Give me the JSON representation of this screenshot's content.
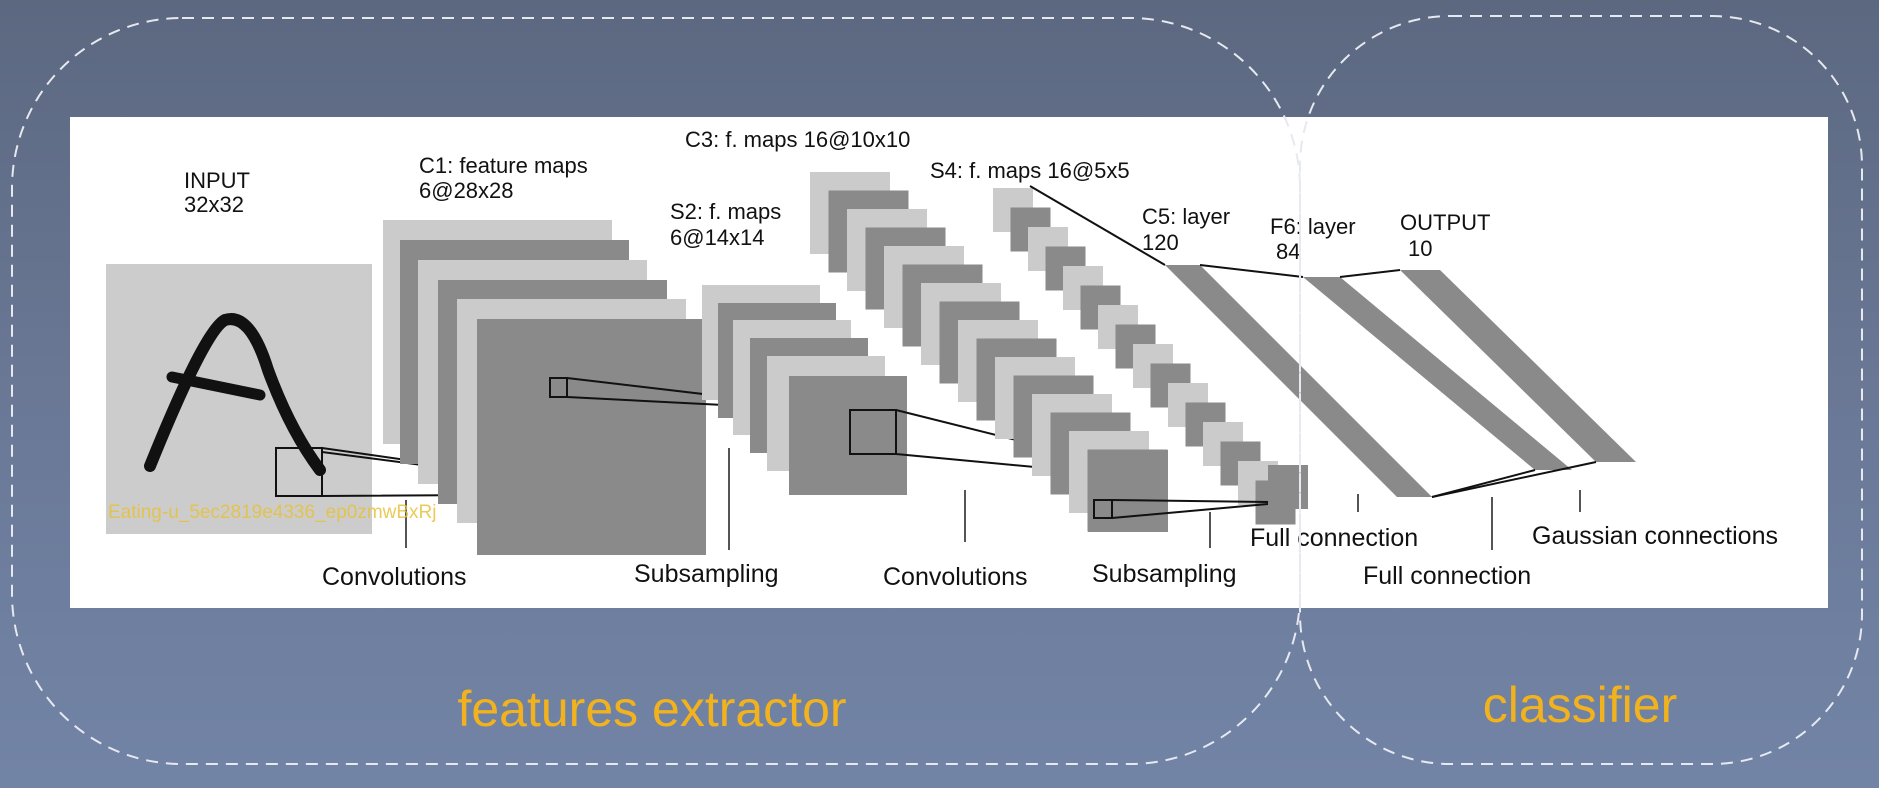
{
  "diagram": {
    "layers": {
      "input": {
        "name": "INPUT",
        "size": "32x32"
      },
      "c1": {
        "name": "C1: feature maps",
        "size": "6@28x28"
      },
      "s2": {
        "name": "S2: f. maps",
        "size": "6@14x14"
      },
      "c3": {
        "name": "C3: f. maps 16@10x10"
      },
      "s4": {
        "name": "S4: f. maps 16@5x5"
      },
      "c5": {
        "name": "C5: layer",
        "size": "120"
      },
      "f6": {
        "name": "F6: layer",
        "size": "84"
      },
      "output": {
        "name": "OUTPUT",
        "size": "10"
      }
    },
    "operations": {
      "conv1": "Convolutions",
      "sub1": "Subsampling",
      "conv2": "Convolutions",
      "sub2": "Subsampling",
      "full1": "Full connection",
      "full2": "Full connection",
      "gauss": "Gaussian connections"
    },
    "watermark": "Eating-u_5ec2819e4336_ep0zmwBxRj"
  },
  "groups": {
    "features": "features extractor",
    "classifier": "classifier"
  },
  "colors": {
    "accent": "#f2b21d",
    "panel": "#ffffff",
    "map_light": "#cbcbcb",
    "map_dark": "#8a8a8a",
    "ink": "#111111"
  }
}
